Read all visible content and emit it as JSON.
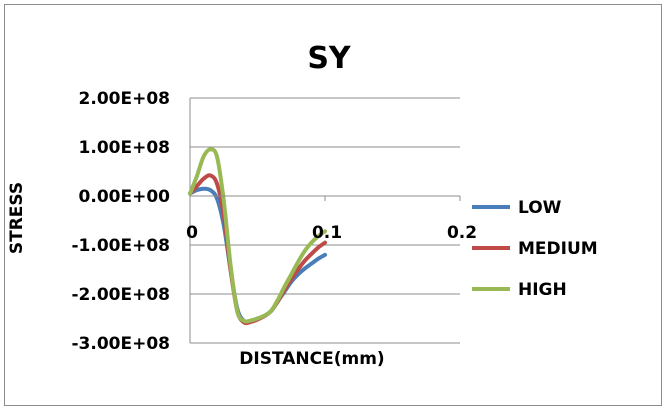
{
  "chart_data": {
    "type": "line",
    "title": "SY",
    "xlabel": "DISTANCE(mm)",
    "ylabel": "STRESS",
    "xlim": [
      0,
      0.2
    ],
    "ylim": [
      -300000000,
      200000000
    ],
    "x_ticks": [
      {
        "value": 0,
        "label": "0"
      },
      {
        "value": 0.1,
        "label": "0.1"
      },
      {
        "value": 0.2,
        "label": "0.2"
      }
    ],
    "y_ticks": [
      {
        "value": 200000000,
        "label": "2.00E+08"
      },
      {
        "value": 100000000,
        "label": "1.00E+08"
      },
      {
        "value": 0,
        "label": "0.00E+00"
      },
      {
        "value": -100000000,
        "label": "-1.00E+08"
      },
      {
        "value": -200000000,
        "label": "-2.00E+08"
      },
      {
        "value": -300000000,
        "label": "-3.00E+08"
      }
    ],
    "grid": "horizontal",
    "legend_position": "right",
    "series": [
      {
        "name": "LOW",
        "color": "#4a7ebb",
        "x": [
          0,
          0.005,
          0.01,
          0.015,
          0.02,
          0.025,
          0.03,
          0.035,
          0.04,
          0.045,
          0.05,
          0.055,
          0.06,
          0.065,
          0.07,
          0.075,
          0.08,
          0.085,
          0.09,
          0.095,
          0.1
        ],
        "y": [
          5000000,
          12000000,
          15000000,
          12000000,
          -5000000,
          -60000000,
          -150000000,
          -230000000,
          -255000000,
          -255000000,
          -250000000,
          -245000000,
          -235000000,
          -215000000,
          -195000000,
          -175000000,
          -160000000,
          -148000000,
          -138000000,
          -128000000,
          -120000000
        ]
      },
      {
        "name": "MEDIUM",
        "color": "#be4b48",
        "x": [
          0,
          0.005,
          0.01,
          0.015,
          0.02,
          0.025,
          0.03,
          0.035,
          0.04,
          0.045,
          0.05,
          0.055,
          0.06,
          0.065,
          0.07,
          0.075,
          0.08,
          0.085,
          0.09,
          0.095,
          0.1
        ],
        "y": [
          5000000,
          20000000,
          35000000,
          42000000,
          25000000,
          -40000000,
          -150000000,
          -235000000,
          -258000000,
          -257000000,
          -252000000,
          -245000000,
          -235000000,
          -215000000,
          -192000000,
          -170000000,
          -150000000,
          -132000000,
          -118000000,
          -105000000,
          -95000000
        ]
      },
      {
        "name": "HIGH",
        "color": "#98b954",
        "x": [
          0,
          0.005,
          0.01,
          0.015,
          0.02,
          0.025,
          0.03,
          0.035,
          0.04,
          0.045,
          0.05,
          0.055,
          0.06,
          0.065,
          0.07,
          0.075,
          0.08,
          0.085,
          0.09,
          0.095,
          0.1
        ],
        "y": [
          5000000,
          40000000,
          80000000,
          95000000,
          80000000,
          -10000000,
          -140000000,
          -235000000,
          -255000000,
          -254000000,
          -250000000,
          -244000000,
          -235000000,
          -212000000,
          -185000000,
          -160000000,
          -135000000,
          -112000000,
          -95000000,
          -82000000,
          -72000000
        ]
      }
    ]
  }
}
